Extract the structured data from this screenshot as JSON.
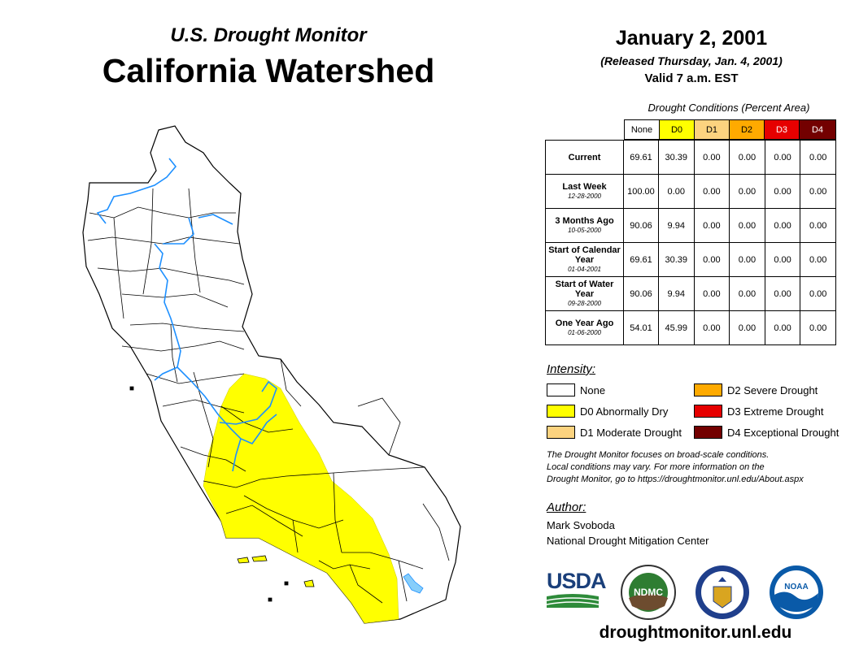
{
  "header": {
    "subtitle": "U.S. Drought Monitor",
    "title": "California Watershed",
    "date": "January 2, 2001",
    "released": "(Released Thursday, Jan. 4, 2001)",
    "valid": "Valid 7 a.m. EST"
  },
  "table": {
    "title": "Drought Conditions (Percent Area)",
    "columns": [
      "None",
      "D0",
      "D1",
      "D2",
      "D3",
      "D4"
    ],
    "column_colors": [
      "#ffffff",
      "#ffff00",
      "#fcd37f",
      "#ffaa00",
      "#e60000",
      "#730000"
    ],
    "rows": [
      {
        "label": "Current",
        "sublabel": "",
        "values": [
          "69.61",
          "30.39",
          "0.00",
          "0.00",
          "0.00",
          "0.00"
        ]
      },
      {
        "label": "Last Week",
        "sublabel": "12-28-2000",
        "values": [
          "100.00",
          "0.00",
          "0.00",
          "0.00",
          "0.00",
          "0.00"
        ]
      },
      {
        "label": "3 Months Ago",
        "sublabel": "10-05-2000",
        "values": [
          "90.06",
          "9.94",
          "0.00",
          "0.00",
          "0.00",
          "0.00"
        ]
      },
      {
        "label": "Start of Calendar Year",
        "sublabel": "01-04-2001",
        "values": [
          "69.61",
          "30.39",
          "0.00",
          "0.00",
          "0.00",
          "0.00"
        ]
      },
      {
        "label": "Start of Water Year",
        "sublabel": "09-28-2000",
        "values": [
          "90.06",
          "9.94",
          "0.00",
          "0.00",
          "0.00",
          "0.00"
        ]
      },
      {
        "label": "One Year Ago",
        "sublabel": "01-06-2000",
        "values": [
          "54.01",
          "45.99",
          "0.00",
          "0.00",
          "0.00",
          "0.00"
        ]
      }
    ]
  },
  "legend": {
    "title": "Intensity:",
    "items": [
      {
        "label": "None",
        "color": "#ffffff"
      },
      {
        "label": "D0 Abnormally Dry",
        "color": "#ffff00"
      },
      {
        "label": "D1 Moderate Drought",
        "color": "#fcd37f"
      },
      {
        "label": "D2 Severe Drought",
        "color": "#ffaa00"
      },
      {
        "label": "D3 Extreme Drought",
        "color": "#e60000"
      },
      {
        "label": "D4 Exceptional Drought",
        "color": "#730000"
      }
    ]
  },
  "note": {
    "line1": "The Drought Monitor focuses on broad-scale conditions.",
    "line2": "Local conditions may vary. For more information on the",
    "line3": "Drought Monitor, go to https://droughtmonitor.unl.edu/About.aspx"
  },
  "author": {
    "heading": "Author:",
    "name": "Mark Svoboda",
    "org": "National Drought Mitigation Center"
  },
  "logos": {
    "usda": "USDA",
    "ndmc": "NDMC",
    "noaa": "NOAA"
  },
  "footer": {
    "url": "droughtmonitor.unl.edu"
  },
  "map": {
    "region": "California Watershed",
    "drought_area": "D0",
    "drought_color": "#ffff00",
    "river_color": "#1e90ff",
    "lake_color": "#87cefa"
  }
}
